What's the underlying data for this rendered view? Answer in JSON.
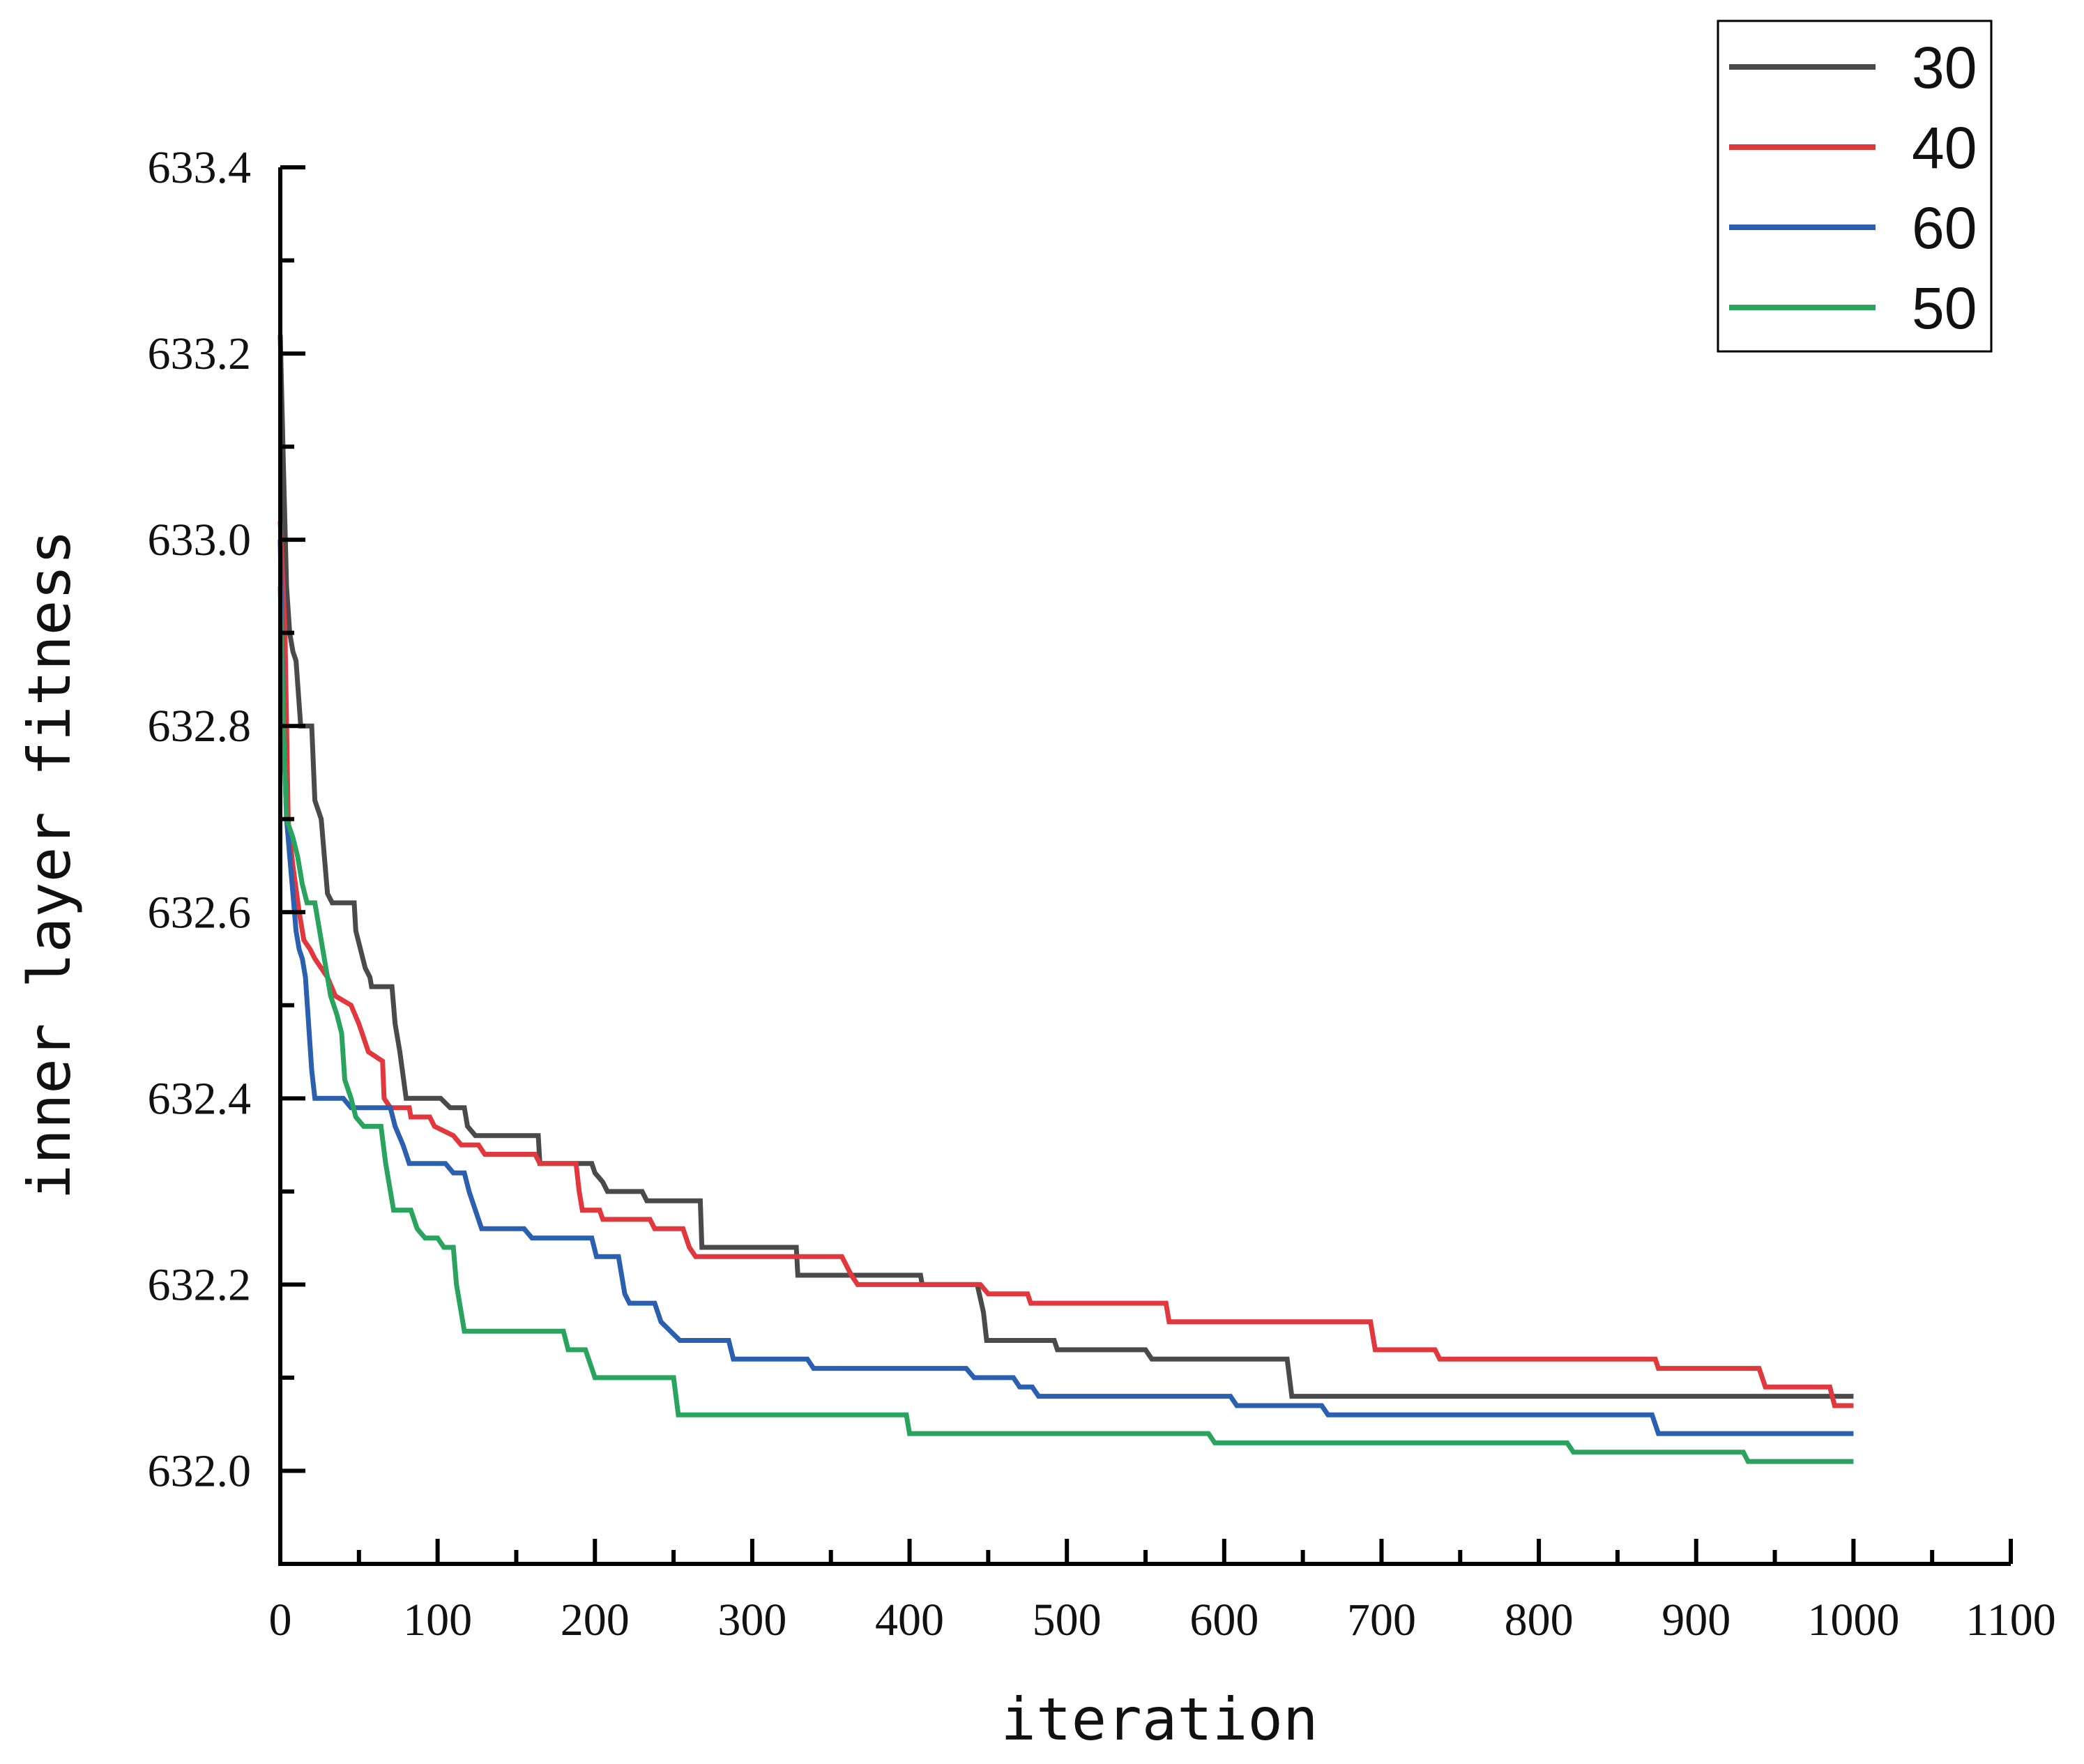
{
  "chart_data": {
    "type": "line",
    "title": "",
    "xlabel": "iteration",
    "ylabel": "inner layer fitness",
    "xlim": [
      0,
      1100
    ],
    "ylim": [
      631.9,
      633.4
    ],
    "xticks": [
      0,
      100,
      200,
      300,
      400,
      500,
      600,
      700,
      800,
      900,
      1000,
      1100
    ],
    "xtick_labels": [
      "0",
      "100",
      "200",
      "300",
      "400",
      "500",
      "600",
      "700",
      "800",
      "900",
      "1000",
      "1100"
    ],
    "yticks": [
      632.0,
      632.2,
      632.4,
      632.6,
      632.8,
      633.0,
      633.2,
      633.4
    ],
    "ytick_labels": [
      "632.0",
      "632.2",
      "632.4",
      "632.6",
      "632.8",
      "633.0",
      "633.2",
      "633.4"
    ],
    "x_minor_step": 50,
    "y_minor_step": 0.1,
    "legend_position": "top-right",
    "grid": false,
    "series": [
      {
        "name": "30",
        "color": "#4a4a4a",
        "points": [
          [
            0,
            633.22
          ],
          [
            2,
            633.08
          ],
          [
            4,
            632.95
          ],
          [
            6,
            632.9
          ],
          [
            8,
            632.88
          ],
          [
            10,
            632.87
          ],
          [
            13,
            632.8
          ],
          [
            20,
            632.8
          ],
          [
            22,
            632.72
          ],
          [
            26,
            632.7
          ],
          [
            28,
            632.66
          ],
          [
            30,
            632.62
          ],
          [
            33,
            632.61
          ],
          [
            47,
            632.61
          ],
          [
            48,
            632.58
          ],
          [
            51,
            632.56
          ],
          [
            54,
            632.54
          ],
          [
            57,
            632.53
          ],
          [
            58,
            632.52
          ],
          [
            71,
            632.52
          ],
          [
            73,
            632.48
          ],
          [
            76,
            632.45
          ],
          [
            80,
            632.4
          ],
          [
            102,
            632.4
          ],
          [
            108,
            632.39
          ],
          [
            117,
            632.39
          ],
          [
            119,
            632.37
          ],
          [
            124,
            632.36
          ],
          [
            164,
            632.36
          ],
          [
            165,
            632.33
          ],
          [
            198,
            632.33
          ],
          [
            200,
            632.32
          ],
          [
            205,
            632.31
          ],
          [
            208,
            632.3
          ],
          [
            230,
            632.3
          ],
          [
            233,
            632.29
          ],
          [
            267,
            632.29
          ],
          [
            268,
            632.24
          ],
          [
            328,
            632.24
          ],
          [
            329,
            632.21
          ],
          [
            407,
            632.21
          ],
          [
            408,
            632.2
          ],
          [
            443,
            632.2
          ],
          [
            447,
            632.17
          ],
          [
            449,
            632.14
          ],
          [
            492,
            632.14
          ],
          [
            494,
            632.13
          ],
          [
            550,
            632.13
          ],
          [
            554,
            632.12
          ],
          [
            640,
            632.12
          ],
          [
            643,
            632.08
          ],
          [
            1000,
            632.08
          ]
        ]
      },
      {
        "name": "40",
        "color": "#e0383c",
        "points": [
          [
            0,
            633.02
          ],
          [
            3,
            632.9
          ],
          [
            5,
            632.7
          ],
          [
            6,
            632.68
          ],
          [
            8,
            632.65
          ],
          [
            12,
            632.6
          ],
          [
            15,
            632.57
          ],
          [
            19,
            632.56
          ],
          [
            22,
            632.55
          ],
          [
            30,
            632.53
          ],
          [
            35,
            632.51
          ],
          [
            45,
            632.5
          ],
          [
            50,
            632.48
          ],
          [
            56,
            632.45
          ],
          [
            65,
            632.44
          ],
          [
            66,
            632.4
          ],
          [
            70,
            632.39
          ],
          [
            82,
            632.39
          ],
          [
            83,
            632.38
          ],
          [
            95,
            632.38
          ],
          [
            98,
            632.37
          ],
          [
            110,
            632.36
          ],
          [
            115,
            632.35
          ],
          [
            126,
            632.35
          ],
          [
            130,
            632.34
          ],
          [
            162,
            632.34
          ],
          [
            165,
            632.33
          ],
          [
            188,
            632.33
          ],
          [
            190,
            632.3
          ],
          [
            192,
            632.28
          ],
          [
            203,
            632.28
          ],
          [
            205,
            632.27
          ],
          [
            235,
            632.27
          ],
          [
            238,
            632.26
          ],
          [
            256,
            632.26
          ],
          [
            260,
            632.24
          ],
          [
            264,
            632.23
          ],
          [
            357,
            632.23
          ],
          [
            360,
            632.22
          ],
          [
            363,
            632.21
          ],
          [
            367,
            632.2
          ],
          [
            445,
            632.2
          ],
          [
            450,
            632.19
          ],
          [
            475,
            632.19
          ],
          [
            477,
            632.18
          ],
          [
            563,
            632.18
          ],
          [
            565,
            632.16
          ],
          [
            693,
            632.16
          ],
          [
            696,
            632.13
          ],
          [
            734,
            632.13
          ],
          [
            737,
            632.12
          ],
          [
            874,
            632.12
          ],
          [
            876,
            632.11
          ],
          [
            940,
            632.11
          ],
          [
            944,
            632.09
          ],
          [
            985,
            632.09
          ],
          [
            988,
            632.07
          ],
          [
            1000,
            632.07
          ]
        ]
      },
      {
        "name": "60",
        "color": "#2b5fb0",
        "points": [
          [
            0,
            633.0
          ],
          [
            2,
            632.8
          ],
          [
            4,
            632.7
          ],
          [
            6,
            632.66
          ],
          [
            8,
            632.62
          ],
          [
            10,
            632.58
          ],
          [
            12,
            632.56
          ],
          [
            14,
            632.55
          ],
          [
            16,
            632.53
          ],
          [
            18,
            632.48
          ],
          [
            20,
            632.43
          ],
          [
            22,
            632.4
          ],
          [
            40,
            632.4
          ],
          [
            45,
            632.39
          ],
          [
            70,
            632.39
          ],
          [
            73,
            632.37
          ],
          [
            78,
            632.35
          ],
          [
            82,
            632.33
          ],
          [
            105,
            632.33
          ],
          [
            110,
            632.32
          ],
          [
            117,
            632.32
          ],
          [
            120,
            632.3
          ],
          [
            124,
            632.28
          ],
          [
            128,
            632.26
          ],
          [
            155,
            632.26
          ],
          [
            160,
            632.25
          ],
          [
            198,
            632.25
          ],
          [
            201,
            632.23
          ],
          [
            215,
            632.23
          ],
          [
            219,
            632.19
          ],
          [
            222,
            632.18
          ],
          [
            238,
            632.18
          ],
          [
            242,
            632.16
          ],
          [
            254,
            632.14
          ],
          [
            285,
            632.14
          ],
          [
            288,
            632.12
          ],
          [
            335,
            632.12
          ],
          [
            339,
            632.11
          ],
          [
            436,
            632.11
          ],
          [
            441,
            632.1
          ],
          [
            466,
            632.1
          ],
          [
            470,
            632.09
          ],
          [
            478,
            632.09
          ],
          [
            482,
            632.08
          ],
          [
            604,
            632.08
          ],
          [
            608,
            632.07
          ],
          [
            662,
            632.07
          ],
          [
            666,
            632.06
          ],
          [
            872,
            632.06
          ],
          [
            876,
            632.04
          ],
          [
            1000,
            632.04
          ]
        ]
      },
      {
        "name": "50",
        "color": "#2aa35f",
        "points": [
          [
            0,
            632.95
          ],
          [
            2,
            632.8
          ],
          [
            4,
            632.7
          ],
          [
            8,
            632.68
          ],
          [
            11,
            632.66
          ],
          [
            14,
            632.63
          ],
          [
            17,
            632.61
          ],
          [
            22,
            632.61
          ],
          [
            25,
            632.58
          ],
          [
            28,
            632.55
          ],
          [
            32,
            632.51
          ],
          [
            36,
            632.49
          ],
          [
            39,
            632.47
          ],
          [
            41,
            632.42
          ],
          [
            45,
            632.4
          ],
          [
            48,
            632.38
          ],
          [
            53,
            632.37
          ],
          [
            64,
            632.37
          ],
          [
            67,
            632.33
          ],
          [
            72,
            632.28
          ],
          [
            83,
            632.28
          ],
          [
            87,
            632.26
          ],
          [
            92,
            632.25
          ],
          [
            100,
            632.25
          ],
          [
            104,
            632.24
          ],
          [
            110,
            632.24
          ],
          [
            112,
            632.2
          ],
          [
            115,
            632.17
          ],
          [
            117,
            632.15
          ],
          [
            180,
            632.15
          ],
          [
            183,
            632.13
          ],
          [
            194,
            632.13
          ],
          [
            198,
            632.11
          ],
          [
            200,
            632.1
          ],
          [
            250,
            632.1
          ],
          [
            253,
            632.06
          ],
          [
            398,
            632.06
          ],
          [
            400,
            632.04
          ],
          [
            590,
            632.04
          ],
          [
            594,
            632.03
          ],
          [
            818,
            632.03
          ],
          [
            822,
            632.02
          ],
          [
            930,
            632.02
          ],
          [
            933,
            632.01
          ],
          [
            1000,
            632.01
          ]
        ]
      }
    ]
  }
}
